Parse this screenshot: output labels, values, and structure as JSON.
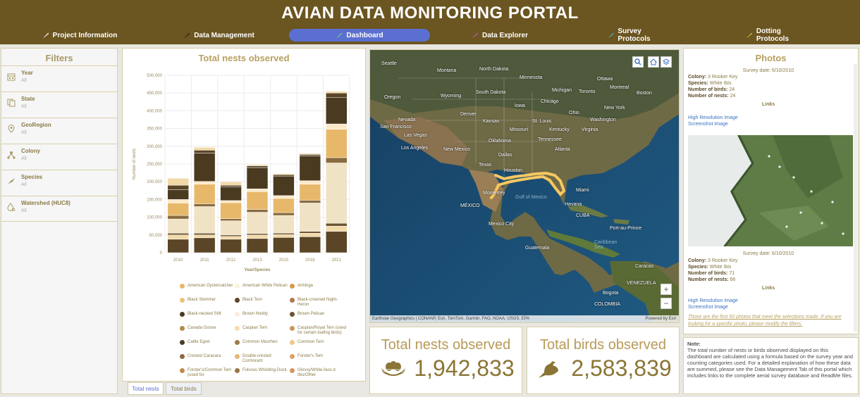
{
  "app": {
    "title": "AVIAN DATA MONITORING PORTAL"
  },
  "nav": [
    {
      "label": "Project Information",
      "icon": "feather-icon",
      "color": "#ffffff",
      "active": false
    },
    {
      "label": "Data Management",
      "icon": "feather-icon",
      "color": "#222222",
      "active": false
    },
    {
      "label": "Dashboard",
      "icon": "feather-icon",
      "color": "#7bd27b",
      "active": true
    },
    {
      "label": "Data Explorer",
      "icon": "feather-icon",
      "color": "#c060c0",
      "active": false
    },
    {
      "label": "Survey Protocols",
      "icon": "feather-icon",
      "color": "#40c0c0",
      "active": false
    },
    {
      "label": "Dotting Protocols",
      "icon": "feather-icon",
      "color": "#d0c040",
      "active": false
    }
  ],
  "filters": {
    "title": "Filters",
    "items": [
      {
        "label": "Year",
        "value": "All",
        "icon": "calendar-icon"
      },
      {
        "label": "State",
        "value": "All",
        "icon": "map-copy-icon"
      },
      {
        "label": "GeoRegion",
        "value": "All",
        "icon": "location-pin-icon"
      },
      {
        "label": "Colony",
        "value": "All",
        "icon": "network-icon"
      },
      {
        "label": "Species",
        "value": "All",
        "icon": "bird-icon"
      },
      {
        "label": "Watershed (HUC8)",
        "value": "All",
        "icon": "water-drop-icon"
      }
    ]
  },
  "chart_data": {
    "type": "bar",
    "stacked": true,
    "title": "Total nests observed",
    "xlabel": "Year/Species",
    "ylabel": "Number of nests",
    "ylim": [
      0,
      500000
    ],
    "yticks": [
      "0",
      "50,000",
      "100,000",
      "150,000",
      "200,000",
      "250,000",
      "300,000",
      "350,000",
      "400,000",
      "450,000",
      "500,000"
    ],
    "categories": [
      "2010",
      "2011",
      "2012",
      "2013",
      "2015",
      "2018",
      "2021"
    ],
    "totals": [
      210000,
      297000,
      200000,
      248000,
      223000,
      280000,
      455000
    ],
    "segment_colors": [
      "#5a4526",
      "#f2d9a8",
      "#6b5230",
      "#f0e2c4",
      "#8a6b3e",
      "#e8b86a",
      "#fbe9c8",
      "#4a3a20"
    ],
    "segments": [
      [
        38000,
        12000,
        5000,
        40000,
        10000,
        35000,
        10000,
        28000,
        12000,
        20000
      ],
      [
        42000,
        8000,
        5000,
        75000,
        8000,
        55000,
        8000,
        80000,
        8000,
        8000
      ],
      [
        38000,
        8000,
        4000,
        40000,
        6000,
        45000,
        6000,
        38000,
        5000,
        10000
      ],
      [
        40000,
        10000,
        4000,
        60000,
        8000,
        50000,
        8000,
        60000,
        5000,
        3000
      ],
      [
        43000,
        8000,
        4000,
        50000,
        8000,
        40000,
        8000,
        55000,
        4000,
        3000
      ],
      [
        45000,
        10000,
        5000,
        80000,
        8000,
        45000,
        10000,
        70000,
        4000,
        3000
      ],
      [
        60000,
        15000,
        8000,
        170000,
        15000,
        80000,
        15000,
        75000,
        12000,
        5000
      ]
    ],
    "legend": [
      {
        "label": "American Oystercatcher",
        "color": "#e8b86a"
      },
      {
        "label": "American White Pelican",
        "color": "#fbf1df"
      },
      {
        "label": "Anhinga",
        "color": "#d99a50"
      },
      {
        "label": "Black Skimmer",
        "color": "#ecc27a"
      },
      {
        "label": "Black Tern",
        "color": "#5a4526"
      },
      {
        "label": "Black-crowned Night-Heron",
        "color": "#b07a44"
      },
      {
        "label": "Black-necked Stilt",
        "color": "#4a3a20"
      },
      {
        "label": "Brown Noddy",
        "color": "#fbeede"
      },
      {
        "label": "Brown Pelican",
        "color": "#6b5230"
      },
      {
        "label": "Canada Goose",
        "color": "#b58a4e"
      },
      {
        "label": "Caspian Tern",
        "color": "#f5dcb0"
      },
      {
        "label": "Caspian/Royal Tern (used for certain loafing birds)",
        "color": "#c99660"
      },
      {
        "label": "Cattle Egret",
        "color": "#4a3d28"
      },
      {
        "label": "Common Moorhen",
        "color": "#a07a46"
      },
      {
        "label": "Common Tern",
        "color": "#f2c68a"
      },
      {
        "label": "Crested Caracara",
        "color": "#8a6b3e"
      },
      {
        "label": "Double-crested Cormorant",
        "color": "#e6b77a"
      },
      {
        "label": "Forster's Tern",
        "color": "#dca060"
      },
      {
        "label": "Forster's/Common Tern (used for",
        "color": "#c08a50"
      },
      {
        "label": "Fulvous Whistling-Duck",
        "color": "#9a7444"
      },
      {
        "label": "Glossy/White-face d Ibis/Other",
        "color": "#d29860"
      }
    ]
  },
  "tabs": [
    {
      "label": "Total nests",
      "active": true
    },
    {
      "label": "Total birds",
      "active": false
    }
  ],
  "map": {
    "labels": [
      "Seattle",
      "Montana",
      "North Dakota",
      "Minnesota",
      "Ottawa",
      "Montreal",
      "Toronto",
      "Boston",
      "Michigan",
      "Chicago",
      "New York",
      "Oregon",
      "Wyoming",
      "South Dakota",
      "Iowa",
      "Denver",
      "Ohio",
      "Washington",
      "San Francisco",
      "Nevada",
      "Kansas",
      "St. Louis",
      "Las Vegas",
      "Missouri",
      "Kentucky",
      "Virginia",
      "Los Angeles",
      "New Mexico",
      "Oklahoma",
      "Tennessee",
      "Dallas",
      "Atlanta",
      "Texas",
      "Houston",
      "Monterrey",
      "Gulf of Mexico",
      "Miami",
      "MÉXICO",
      "Havana",
      "CUBA",
      "Mexico City",
      "Port-au-Prince",
      "Caribbean Sea",
      "Guatemala",
      "Caracas",
      "VENEZUELA",
      "Bogota",
      "COLOMBIA"
    ],
    "attribution": "Earthstar Geographics | CONANP, Esri, TomTom, Garmin, FAO, NOAA, USGS, EPA",
    "powered": "Powered by Esri",
    "zoom_in": "+",
    "zoom_out": "−"
  },
  "stats": {
    "nests": {
      "title": "Total nests observed",
      "value": "1,942,833"
    },
    "birds": {
      "title": "Total birds observed",
      "value": "2,583,839"
    }
  },
  "photos": {
    "title": "Photos",
    "survey1": {
      "date": "Survey date: 6/10/2010",
      "colony_k": "Colony:",
      "colony_v": "3 Rooker Key",
      "species_k": "Species:",
      "species_v": "White Ibis",
      "birds_k": "Number of birds:",
      "birds_v": "24",
      "nests_k": "Number of nests:",
      "nests_v": "24",
      "links": "Links",
      "hires": "High Resolution Image",
      "screenshot": "Screenshot Image"
    },
    "survey2": {
      "date": "Survey date: 6/10/2010",
      "colony_k": "Colony:",
      "colony_v": "3 Rooker Key",
      "species_k": "Species:",
      "species_v": "White Ibis",
      "birds_k": "Number of birds:",
      "birds_v": "71",
      "nests_k": "Number of nests:",
      "nests_v": "66",
      "links": "Links",
      "hires": "High Resolution Image",
      "screenshot": "Screenshot Image"
    },
    "footer": "Those are the first 50 photos that meet the selections made. If you are looking for a specific photo, please modify the filters."
  },
  "note": {
    "title": "Note:",
    "text": "The total number of nests or birds observed displayed on this dashboard are calculated using a formula based on the survey year and counting categories used. For a detailed explanation of how these data are summed, please see the Data Management Tab of this portal which includes links to the complete aerial survey database and ReadMe files."
  }
}
